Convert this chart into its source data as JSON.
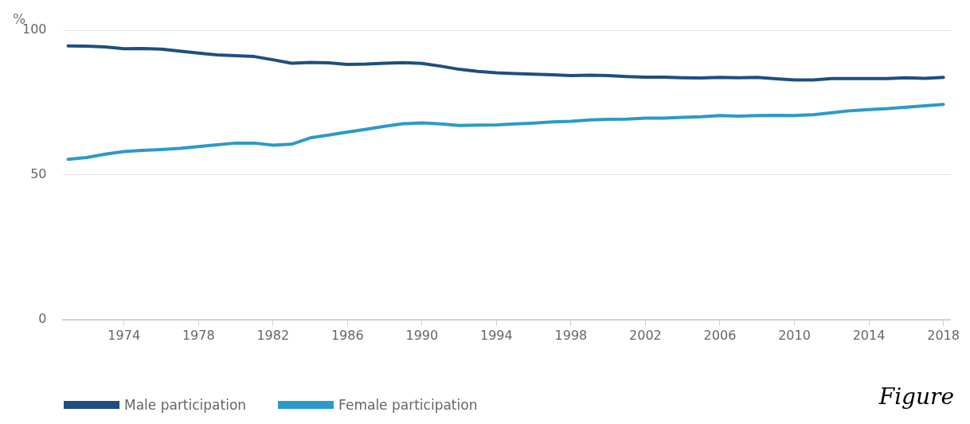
{
  "chart_data": {
    "type": "line",
    "ylabel": "%",
    "annotations": [
      "Figure"
    ],
    "x": [
      1971,
      1972,
      1973,
      1974,
      1975,
      1976,
      1977,
      1978,
      1979,
      1980,
      1981,
      1982,
      1983,
      1984,
      1985,
      1986,
      1987,
      1988,
      1989,
      1990,
      1991,
      1992,
      1993,
      1994,
      1995,
      1996,
      1997,
      1998,
      1999,
      2000,
      2001,
      2002,
      2003,
      2004,
      2005,
      2006,
      2007,
      2008,
      2009,
      2010,
      2011,
      2012,
      2013,
      2014,
      2015,
      2016,
      2017,
      2018
    ],
    "series": [
      {
        "name": "Male participation",
        "color": "#1f4e80",
        "values": [
          94.6,
          94.5,
          94.2,
          93.6,
          93.7,
          93.5,
          92.8,
          92.1,
          91.5,
          91.2,
          90.9,
          89.8,
          88.6,
          88.9,
          88.7,
          88.2,
          88.3,
          88.6,
          88.8,
          88.5,
          87.6,
          86.5,
          85.8,
          85.3,
          85.0,
          84.8,
          84.6,
          84.3,
          84.5,
          84.3,
          84.0,
          83.8,
          83.8,
          83.6,
          83.5,
          83.7,
          83.6,
          83.7,
          83.2,
          82.8,
          82.8,
          83.3,
          83.3,
          83.3,
          83.3,
          83.6,
          83.4,
          83.7
        ]
      },
      {
        "name": "Female participation",
        "color": "#2b9ac8",
        "values": [
          55.4,
          56.0,
          57.2,
          58.1,
          58.5,
          58.8,
          59.2,
          59.8,
          60.4,
          61.0,
          61.0,
          60.3,
          60.6,
          62.8,
          63.8,
          64.8,
          65.8,
          66.8,
          67.7,
          68.0,
          67.6,
          67.1,
          67.2,
          67.3,
          67.6,
          67.9,
          68.3,
          68.5,
          69.0,
          69.2,
          69.3,
          69.6,
          69.6,
          69.9,
          70.1,
          70.5,
          70.3,
          70.5,
          70.6,
          70.5,
          70.8,
          71.5,
          72.2,
          72.6,
          72.9,
          73.4,
          73.9,
          74.4
        ]
      }
    ],
    "xlim": [
      1970.7,
      2018.4
    ],
    "xticks": [
      1974,
      1978,
      1982,
      1986,
      1990,
      1994,
      1998,
      2002,
      2006,
      2010,
      2014,
      2018
    ],
    "ylim": [
      0,
      100
    ],
    "yticks": [
      0,
      50,
      100
    ],
    "grid": "y",
    "legend": "bottom left",
    "marker": "none",
    "line_style": "solid"
  }
}
